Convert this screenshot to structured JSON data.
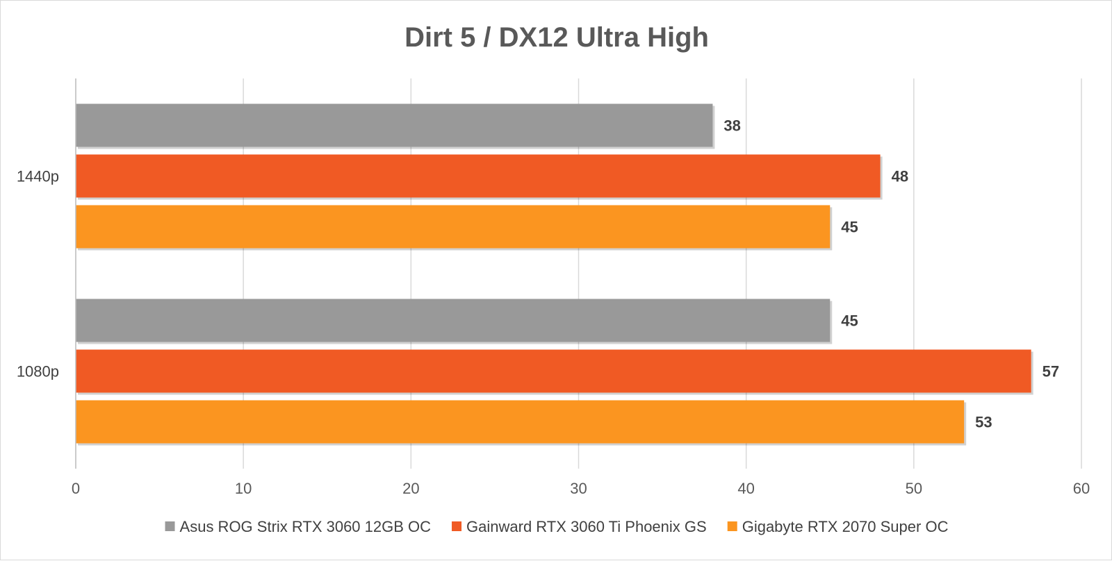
{
  "chart_data": {
    "type": "bar",
    "orientation": "horizontal",
    "title": "Dirt 5 / DX12 Ultra High",
    "categories": [
      "1440p",
      "1080p"
    ],
    "series": [
      {
        "name": "Asus ROG Strix RTX 3060 12GB OC",
        "color": "#999999",
        "values": [
          38,
          45
        ]
      },
      {
        "name": "Gainward RTX 3060 Ti Phoenix GS",
        "color": "#f05a24",
        "values": [
          48,
          57
        ]
      },
      {
        "name": "Gigabyte RTX 2070 Super OC",
        "color": "#fb9520",
        "values": [
          45,
          53
        ]
      }
    ],
    "xlim": [
      0,
      60
    ],
    "xticks": [
      "0",
      "10",
      "20",
      "30",
      "40",
      "50",
      "60"
    ],
    "grid": true,
    "legend": "bottom",
    "data_labels": true
  }
}
